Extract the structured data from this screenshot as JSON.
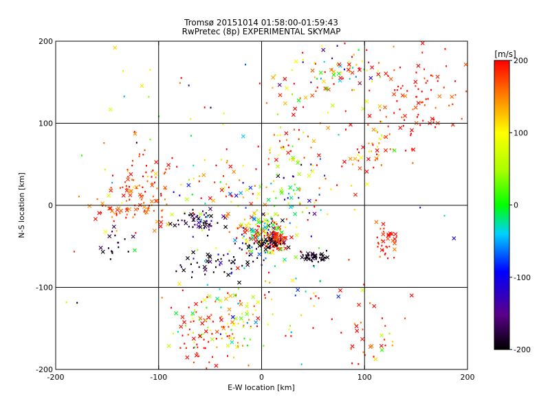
{
  "chart_data": {
    "type": "scatter",
    "title": "Tromsø 20151014 01:58:00-01:59:43",
    "subtitle": "RwPretec (8p) EXPERIMENTAL SKYMAP",
    "xlabel": "E-W location [km]",
    "ylabel": "N-S location [km]",
    "xlim": [
      -200,
      200
    ],
    "ylim": [
      -200,
      200
    ],
    "xticks": [
      -200,
      -100,
      0,
      100,
      200
    ],
    "yticks": [
      -200,
      -100,
      0,
      100,
      200
    ],
    "grid": true,
    "colorbar": {
      "label": "[m/s]",
      "range": [
        -200,
        200
      ],
      "ticks": [
        200,
        100,
        0,
        -100,
        -200
      ],
      "colormap": "black-purple-blue-cyan-green-yellow-red"
    },
    "marker_legend_note": "",
    "clusters": [
      {
        "x": 0,
        "y": -35,
        "spread_x": 12,
        "spread_y": 12,
        "n": 170,
        "vel_mean": 60,
        "vel_sd": 140
      },
      {
        "x": 15,
        "y": -42,
        "spread_x": 6,
        "spread_y": 5,
        "n": 60,
        "vel_mean": 190,
        "vel_sd": 20
      },
      {
        "x": 5,
        "y": -47,
        "spread_x": 8,
        "spread_y": 4,
        "n": 40,
        "vel_mean": -195,
        "vel_sd": 10
      },
      {
        "x": -60,
        "y": -20,
        "spread_x": 12,
        "spread_y": 7,
        "n": 55,
        "vel_mean": -185,
        "vel_sd": 40
      },
      {
        "x": 50,
        "y": -63,
        "spread_x": 6,
        "spread_y": 4,
        "n": 45,
        "vel_mean": -195,
        "vel_sd": 10
      },
      {
        "x": -40,
        "y": -70,
        "spread_x": 25,
        "spread_y": 10,
        "n": 55,
        "vel_mean": -180,
        "vel_sd": 50
      },
      {
        "x": -115,
        "y": 20,
        "spread_x": 15,
        "spread_y": 25,
        "n": 90,
        "vel_mean": 185,
        "vel_sd": 30
      },
      {
        "x": -145,
        "y": 0,
        "spread_x": 12,
        "spread_y": 12,
        "n": 30,
        "vel_mean": 170,
        "vel_sd": 50
      },
      {
        "x": -140,
        "y": -48,
        "spread_x": 8,
        "spread_y": 10,
        "n": 18,
        "vel_mean": -195,
        "vel_sd": 15
      },
      {
        "x": -40,
        "y": -140,
        "spread_x": 22,
        "spread_y": 20,
        "n": 85,
        "vel_mean": 120,
        "vel_sd": 90
      },
      {
        "x": -60,
        "y": -165,
        "spread_x": 10,
        "spread_y": 20,
        "n": 30,
        "vel_mean": 190,
        "vel_sd": 15
      },
      {
        "x": 120,
        "y": -45,
        "spread_x": 8,
        "spread_y": 12,
        "n": 35,
        "vel_mean": 185,
        "vel_sd": 25
      },
      {
        "x": 145,
        "y": 130,
        "spread_x": 25,
        "spread_y": 30,
        "n": 90,
        "vel_mean": 190,
        "vel_sd": 20
      },
      {
        "x": 80,
        "y": 165,
        "spread_x": 20,
        "spread_y": 15,
        "n": 65,
        "vel_mean": 80,
        "vel_sd": 110
      },
      {
        "x": 110,
        "y": 65,
        "spread_x": 15,
        "spread_y": 15,
        "n": 40,
        "vel_mean": 170,
        "vel_sd": 50
      },
      {
        "x": 30,
        "y": 75,
        "spread_x": 20,
        "spread_y": 15,
        "n": 35,
        "vel_mean": 160,
        "vel_sd": 70
      },
      {
        "x": 25,
        "y": 15,
        "spread_x": 25,
        "spread_y": 20,
        "n": 70,
        "vel_mean": 0,
        "vel_sd": 130
      },
      {
        "x": 40,
        "y": 140,
        "spread_x": 20,
        "spread_y": 20,
        "n": 25,
        "vel_mean": 150,
        "vel_sd": 80
      },
      {
        "x": 100,
        "y": -160,
        "spread_x": 15,
        "spread_y": 25,
        "n": 30,
        "vel_mean": 185,
        "vel_sd": 30
      },
      {
        "x": 0,
        "y": -110,
        "spread_x": 40,
        "spread_y": 40,
        "n": 60,
        "vel_mean": 60,
        "vel_sd": 150
      },
      {
        "x": -50,
        "y": 30,
        "spread_x": 30,
        "spread_y": 20,
        "n": 45,
        "vel_mean": 120,
        "vel_sd": 110
      },
      {
        "x": 0,
        "y": 0,
        "spread_x": 120,
        "spread_y": 110,
        "n": 140,
        "vel_mean": 80,
        "vel_sd": 140
      }
    ]
  }
}
